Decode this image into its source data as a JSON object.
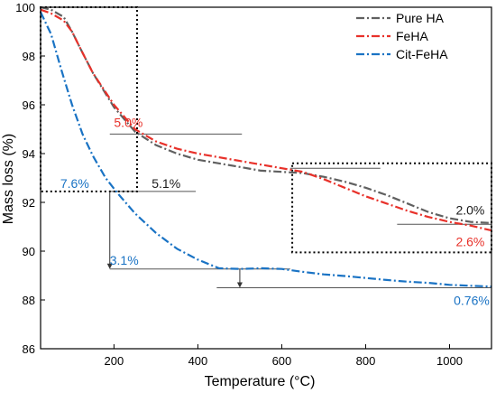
{
  "chart_data": {
    "type": "line",
    "title": "",
    "xlabel": "Temperature (°C)",
    "ylabel": "Mass loss (%)",
    "xlim": [
      25,
      1100
    ],
    "ylim": [
      86,
      100
    ],
    "xticks": [
      200,
      400,
      600,
      800,
      1000
    ],
    "yticks": [
      86,
      88,
      90,
      92,
      94,
      96,
      98,
      100
    ],
    "legend": {
      "placement": "top-right"
    },
    "series": [
      {
        "name": "Pure HA",
        "color": "#606060",
        "dash": "dashdot",
        "points": [
          [
            25,
            100
          ],
          [
            50,
            99.9
          ],
          [
            80,
            99.6
          ],
          [
            100,
            99.0
          ],
          [
            120,
            98.3
          ],
          [
            150,
            97.3
          ],
          [
            200,
            95.9
          ],
          [
            250,
            94.9
          ],
          [
            300,
            94.35
          ],
          [
            350,
            94.0
          ],
          [
            400,
            93.75
          ],
          [
            450,
            93.6
          ],
          [
            500,
            93.45
          ],
          [
            550,
            93.3
          ],
          [
            600,
            93.25
          ],
          [
            650,
            93.2
          ],
          [
            700,
            93.05
          ],
          [
            750,
            92.85
          ],
          [
            800,
            92.6
          ],
          [
            850,
            92.3
          ],
          [
            900,
            91.95
          ],
          [
            950,
            91.6
          ],
          [
            1000,
            91.35
          ],
          [
            1050,
            91.2
          ],
          [
            1100,
            91.15
          ]
        ]
      },
      {
        "name": "FeHA",
        "color": "#e8312a",
        "dash": "dashdot",
        "points": [
          [
            25,
            99.9
          ],
          [
            50,
            99.75
          ],
          [
            80,
            99.45
          ],
          [
            100,
            99.0
          ],
          [
            120,
            98.3
          ],
          [
            150,
            97.3
          ],
          [
            200,
            96.0
          ],
          [
            250,
            95.0
          ],
          [
            300,
            94.5
          ],
          [
            350,
            94.2
          ],
          [
            400,
            94.0
          ],
          [
            450,
            93.85
          ],
          [
            500,
            93.7
          ],
          [
            550,
            93.55
          ],
          [
            600,
            93.4
          ],
          [
            650,
            93.25
          ],
          [
            700,
            92.95
          ],
          [
            750,
            92.6
          ],
          [
            800,
            92.25
          ],
          [
            850,
            91.95
          ],
          [
            900,
            91.65
          ],
          [
            950,
            91.4
          ],
          [
            1000,
            91.2
          ],
          [
            1050,
            91.05
          ],
          [
            1100,
            90.85
          ]
        ]
      },
      {
        "name": "Cit-FeHA",
        "color": "#1a73c4",
        "dash": "dashdot",
        "points": [
          [
            25,
            99.8
          ],
          [
            50,
            98.9
          ],
          [
            75,
            97.4
          ],
          [
            100,
            96.0
          ],
          [
            125,
            94.8
          ],
          [
            150,
            93.9
          ],
          [
            180,
            93.0
          ],
          [
            210,
            92.35
          ],
          [
            250,
            91.55
          ],
          [
            300,
            90.75
          ],
          [
            350,
            90.1
          ],
          [
            400,
            89.65
          ],
          [
            450,
            89.3
          ],
          [
            500,
            89.27
          ],
          [
            550,
            89.3
          ],
          [
            600,
            89.27
          ],
          [
            650,
            89.15
          ],
          [
            700,
            89.05
          ],
          [
            750,
            88.98
          ],
          [
            800,
            88.9
          ],
          [
            850,
            88.82
          ],
          [
            900,
            88.75
          ],
          [
            950,
            88.7
          ],
          [
            1000,
            88.62
          ],
          [
            1050,
            88.58
          ],
          [
            1100,
            88.55
          ]
        ]
      }
    ],
    "annotations": [
      {
        "text": "5.0%",
        "color": "#e8312a",
        "x": 200,
        "y": 95.1
      },
      {
        "text": "5.1%",
        "color": "#1a1a1a",
        "x": 290,
        "y": 92.6
      },
      {
        "text": "7.6%",
        "color": "#1a73c4",
        "x": 72,
        "y": 92.6
      },
      {
        "text": "3.1%",
        "color": "#1a73c4",
        "x": 190,
        "y": 89.45
      },
      {
        "text": "2.0%",
        "color": "#1a1a1a",
        "x": 1015,
        "y": 91.5
      },
      {
        "text": "2.6%",
        "color": "#e8312a",
        "x": 1015,
        "y": 90.2
      },
      {
        "text": "0.76%",
        "color": "#1a73c4",
        "x": 1010,
        "y": 87.8
      }
    ],
    "reference_lines": [
      {
        "x1": 190,
        "x2": 505,
        "y": 94.8
      },
      {
        "x1": 190,
        "x2": 395,
        "y": 92.45
      },
      {
        "x1": 620,
        "x2": 835,
        "y": 93.4
      },
      {
        "x1": 875,
        "x2": 1100,
        "y": 91.1
      },
      {
        "x1": 190,
        "x2": 620,
        "y": 89.27
      },
      {
        "x1": 445,
        "x2": 1100,
        "y": 88.5
      }
    ],
    "arrows": [
      {
        "x": 190,
        "y1": 92.45,
        "y2": 89.27
      },
      {
        "x": 500,
        "y1": 89.27,
        "y2": 88.5
      }
    ],
    "boxes": [
      {
        "x1": 25,
        "x2": 255,
        "y1": 92.45,
        "y2": 100
      },
      {
        "x1": 625,
        "x2": 1100,
        "y1": 89.95,
        "y2": 93.6
      }
    ]
  }
}
